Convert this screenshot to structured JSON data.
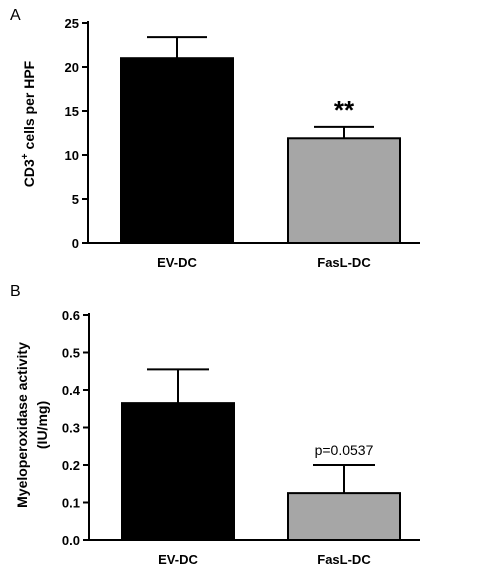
{
  "chart_data": [
    {
      "panel": "A",
      "type": "bar",
      "categories": [
        "EV-DC",
        "FasL-DC"
      ],
      "values": [
        21.0,
        11.9
      ],
      "error": [
        2.4,
        1.3
      ],
      "colors": [
        "#000000",
        "#a6a6a6"
      ],
      "ylabel": "CD3+ cells per HPF",
      "ylabel_main": "CD3",
      "ylabel_sup": "+",
      "ylabel_rest": " cells per HPF",
      "ylim": [
        0,
        25
      ],
      "yticks": [
        0,
        5,
        10,
        15,
        20,
        25
      ],
      "annotation": "**",
      "annotation_index": 1
    },
    {
      "panel": "B",
      "type": "bar",
      "categories": [
        "EV-DC",
        "FasL-DC"
      ],
      "values": [
        0.365,
        0.125
      ],
      "error": [
        0.09,
        0.075
      ],
      "colors": [
        "#000000",
        "#a6a6a6"
      ],
      "ylabel": "Myeloperoxidase activity (IU/mg)",
      "ylabel_line1": "Myeloperoxidase activity",
      "ylabel_line2": "(IU/mg)",
      "ylim": [
        0,
        0.6
      ],
      "yticks": [
        "0.0",
        "0.1",
        "0.2",
        "0.3",
        "0.4",
        "0.5",
        "0.6"
      ],
      "annotation": "p=0.0537",
      "annotation_index": 1
    }
  ]
}
